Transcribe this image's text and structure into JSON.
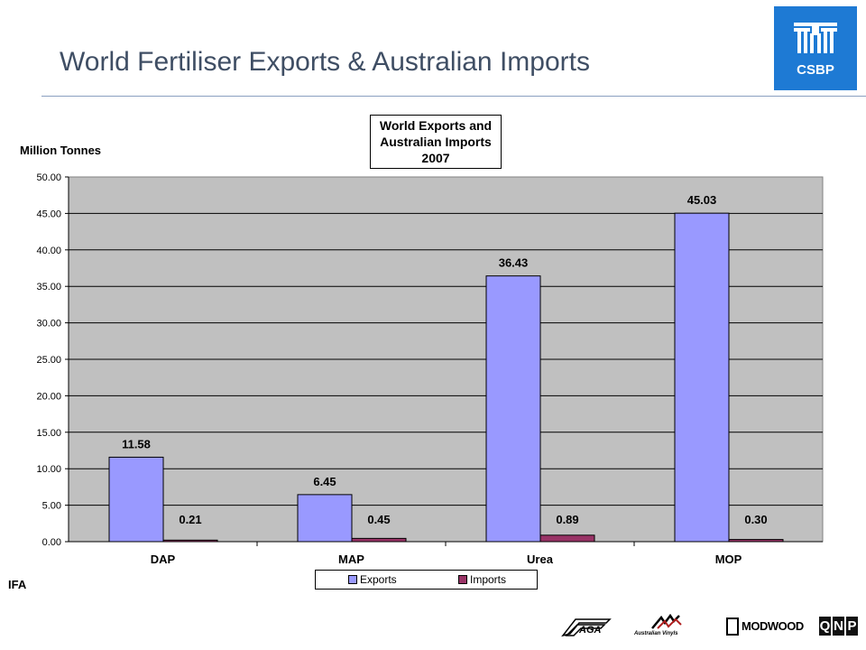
{
  "slide": {
    "title": "World Fertiliser Exports & Australian Imports",
    "logo_text": "CSBP",
    "source_label": "IFA",
    "footer_logos": {
      "aga": "AGA",
      "australian_vinyls": "Australian Vinyls",
      "modwood": "MODWOOD",
      "qnp": [
        "Q",
        "N",
        "P"
      ]
    }
  },
  "chart_data": {
    "type": "bar",
    "title_lines": [
      "World Exports and",
      "Australian Imports",
      "2007"
    ],
    "ylabel": "Million Tonnes",
    "xlabel": "",
    "categories": [
      "DAP",
      "MAP",
      "Urea",
      "MOP"
    ],
    "series": [
      {
        "name": "Exports",
        "values": [
          11.58,
          6.45,
          36.43,
          45.03
        ],
        "color": "#9999ff"
      },
      {
        "name": "Imports",
        "values": [
          0.21,
          0.45,
          0.89,
          0.3
        ],
        "color": "#993366"
      }
    ],
    "data_labels": [
      [
        "11.58",
        "6.45",
        "36.43",
        "45.03"
      ],
      [
        "0.21",
        "0.45",
        "0.89",
        "0.30"
      ]
    ],
    "y_ticks": [
      "0.00",
      "5.00",
      "10.00",
      "15.00",
      "20.00",
      "25.00",
      "30.00",
      "35.00",
      "40.00",
      "45.00",
      "50.00"
    ],
    "ylim": [
      0,
      50
    ],
    "grid": true,
    "plot_background": "#c0c0c0",
    "legend_position": "bottom"
  }
}
